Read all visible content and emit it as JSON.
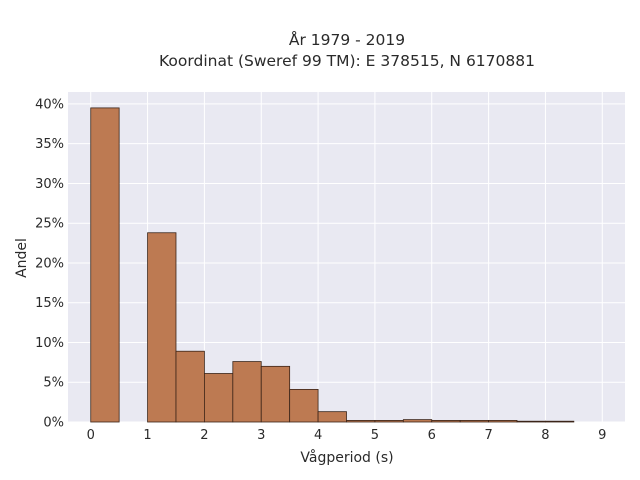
{
  "chart_data": {
    "type": "bar",
    "title_line1": "År 1979 - 2019",
    "title_line2": "Koordinat (Sweref 99 TM): E 378515, N 6170881",
    "xlabel": "Vågperiod (s)",
    "ylabel": "Andel",
    "xlim": [
      -0.4,
      9.4
    ],
    "ylim": [
      0,
      0.415
    ],
    "x_ticks": [
      0,
      1,
      2,
      3,
      4,
      5,
      6,
      7,
      8,
      9
    ],
    "y_ticks": [
      0,
      0.05,
      0.1,
      0.15,
      0.2,
      0.25,
      0.3,
      0.35,
      0.4
    ],
    "y_tick_labels": [
      "0%",
      "5%",
      "10%",
      "15%",
      "20%",
      "25%",
      "30%",
      "35%",
      "40%"
    ],
    "bin_width": 0.5,
    "bins": [
      {
        "start": 0.0,
        "value": 0.395
      },
      {
        "start": 0.5,
        "value": 0.0
      },
      {
        "start": 1.0,
        "value": 0.238
      },
      {
        "start": 1.5,
        "value": 0.089
      },
      {
        "start": 2.0,
        "value": 0.061
      },
      {
        "start": 2.5,
        "value": 0.076
      },
      {
        "start": 3.0,
        "value": 0.07
      },
      {
        "start": 3.5,
        "value": 0.041
      },
      {
        "start": 4.0,
        "value": 0.013
      },
      {
        "start": 4.5,
        "value": 0.002
      },
      {
        "start": 5.0,
        "value": 0.002
      },
      {
        "start": 5.5,
        "value": 0.003
      },
      {
        "start": 6.0,
        "value": 0.002
      },
      {
        "start": 6.5,
        "value": 0.002
      },
      {
        "start": 7.0,
        "value": 0.002
      },
      {
        "start": 7.5,
        "value": 0.001
      },
      {
        "start": 8.0,
        "value": 0.001
      }
    ],
    "grid": true,
    "colors": {
      "bar_fill": "#bd7a52",
      "bar_edge": "#3b2418",
      "plot_bg": "#e9e9f2",
      "grid": "#ffffff"
    }
  }
}
